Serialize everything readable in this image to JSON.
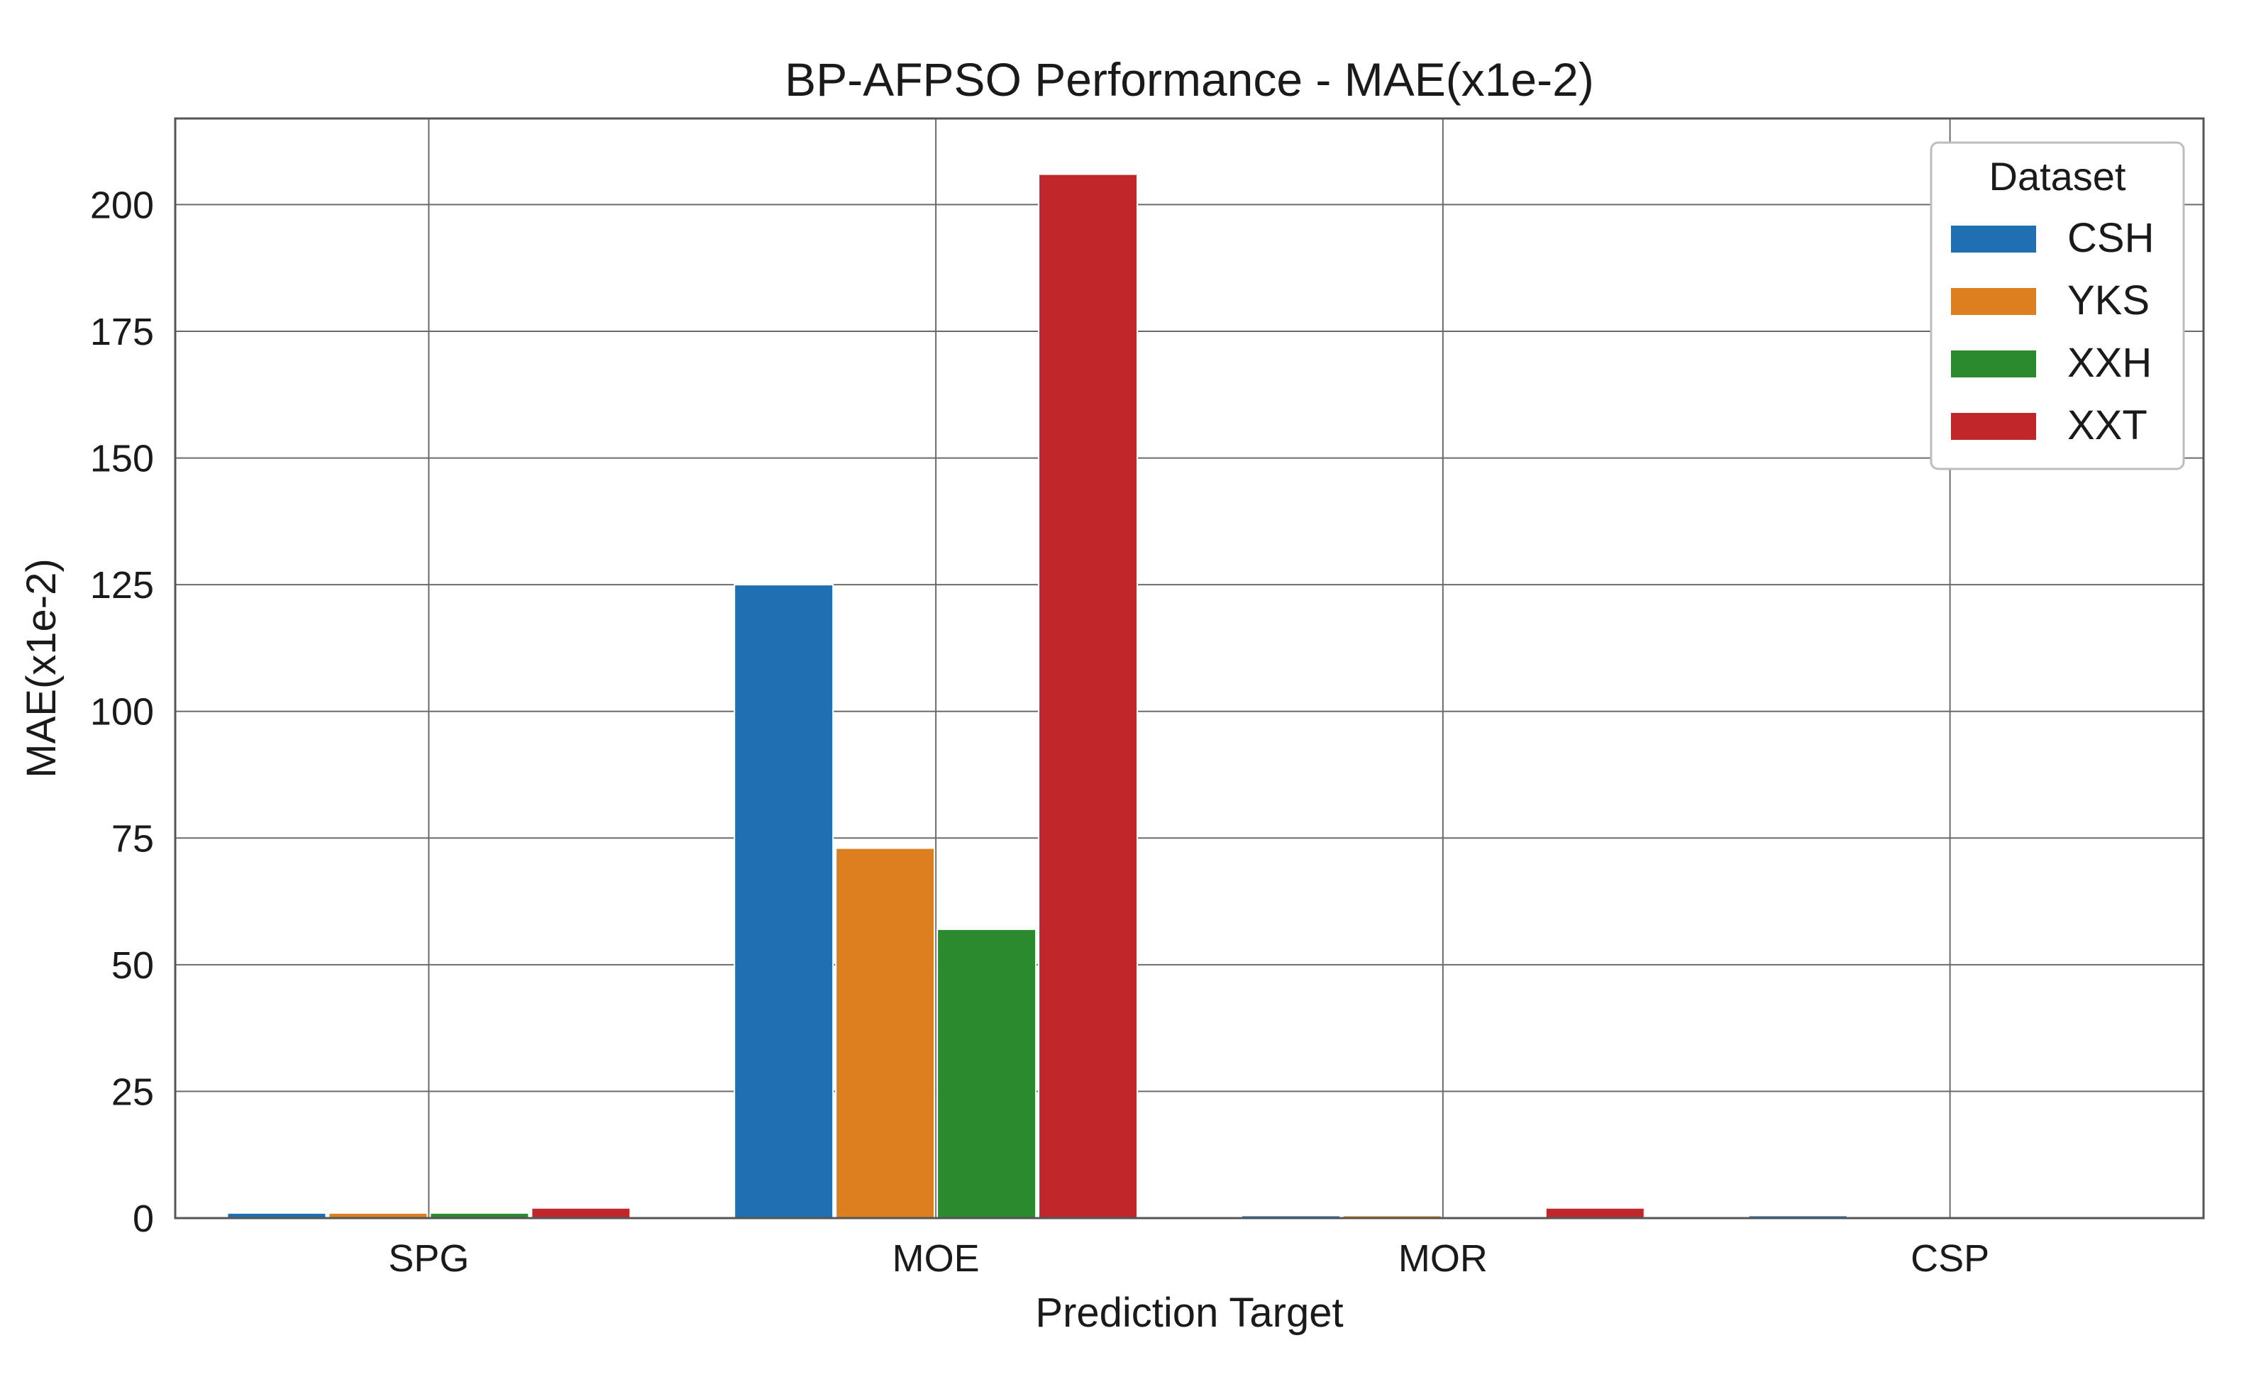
{
  "chart_data": {
    "type": "bar",
    "title": "BP-AFPSO Performance - MAE(x1e-2)",
    "xlabel": "Prediction Target",
    "ylabel": "MAE(x1e-2)",
    "categories": [
      "SPG",
      "MOE",
      "MOR",
      "CSP"
    ],
    "series": [
      {
        "name": "CSH",
        "color": "#1f6fb2",
        "values": [
          1.0,
          125.0,
          0.5,
          0.5
        ]
      },
      {
        "name": "YKS",
        "color": "#dd7f1f",
        "values": [
          1.0,
          73.0,
          0.5,
          0.0
        ]
      },
      {
        "name": "XXH",
        "color": "#2a8a2e",
        "values": [
          1.0,
          57.0,
          0.0,
          0.0
        ]
      },
      {
        "name": "XXT",
        "color": "#c0272b",
        "values": [
          2.0,
          206.0,
          2.0,
          0.0
        ]
      }
    ],
    "ylim": [
      0,
      217
    ],
    "yticks": [
      "0",
      "25",
      "50",
      "75",
      "100",
      "125",
      "150",
      "175",
      "200"
    ],
    "grid": true,
    "legend": {
      "title": "Dataset",
      "position": "top-right"
    }
  }
}
